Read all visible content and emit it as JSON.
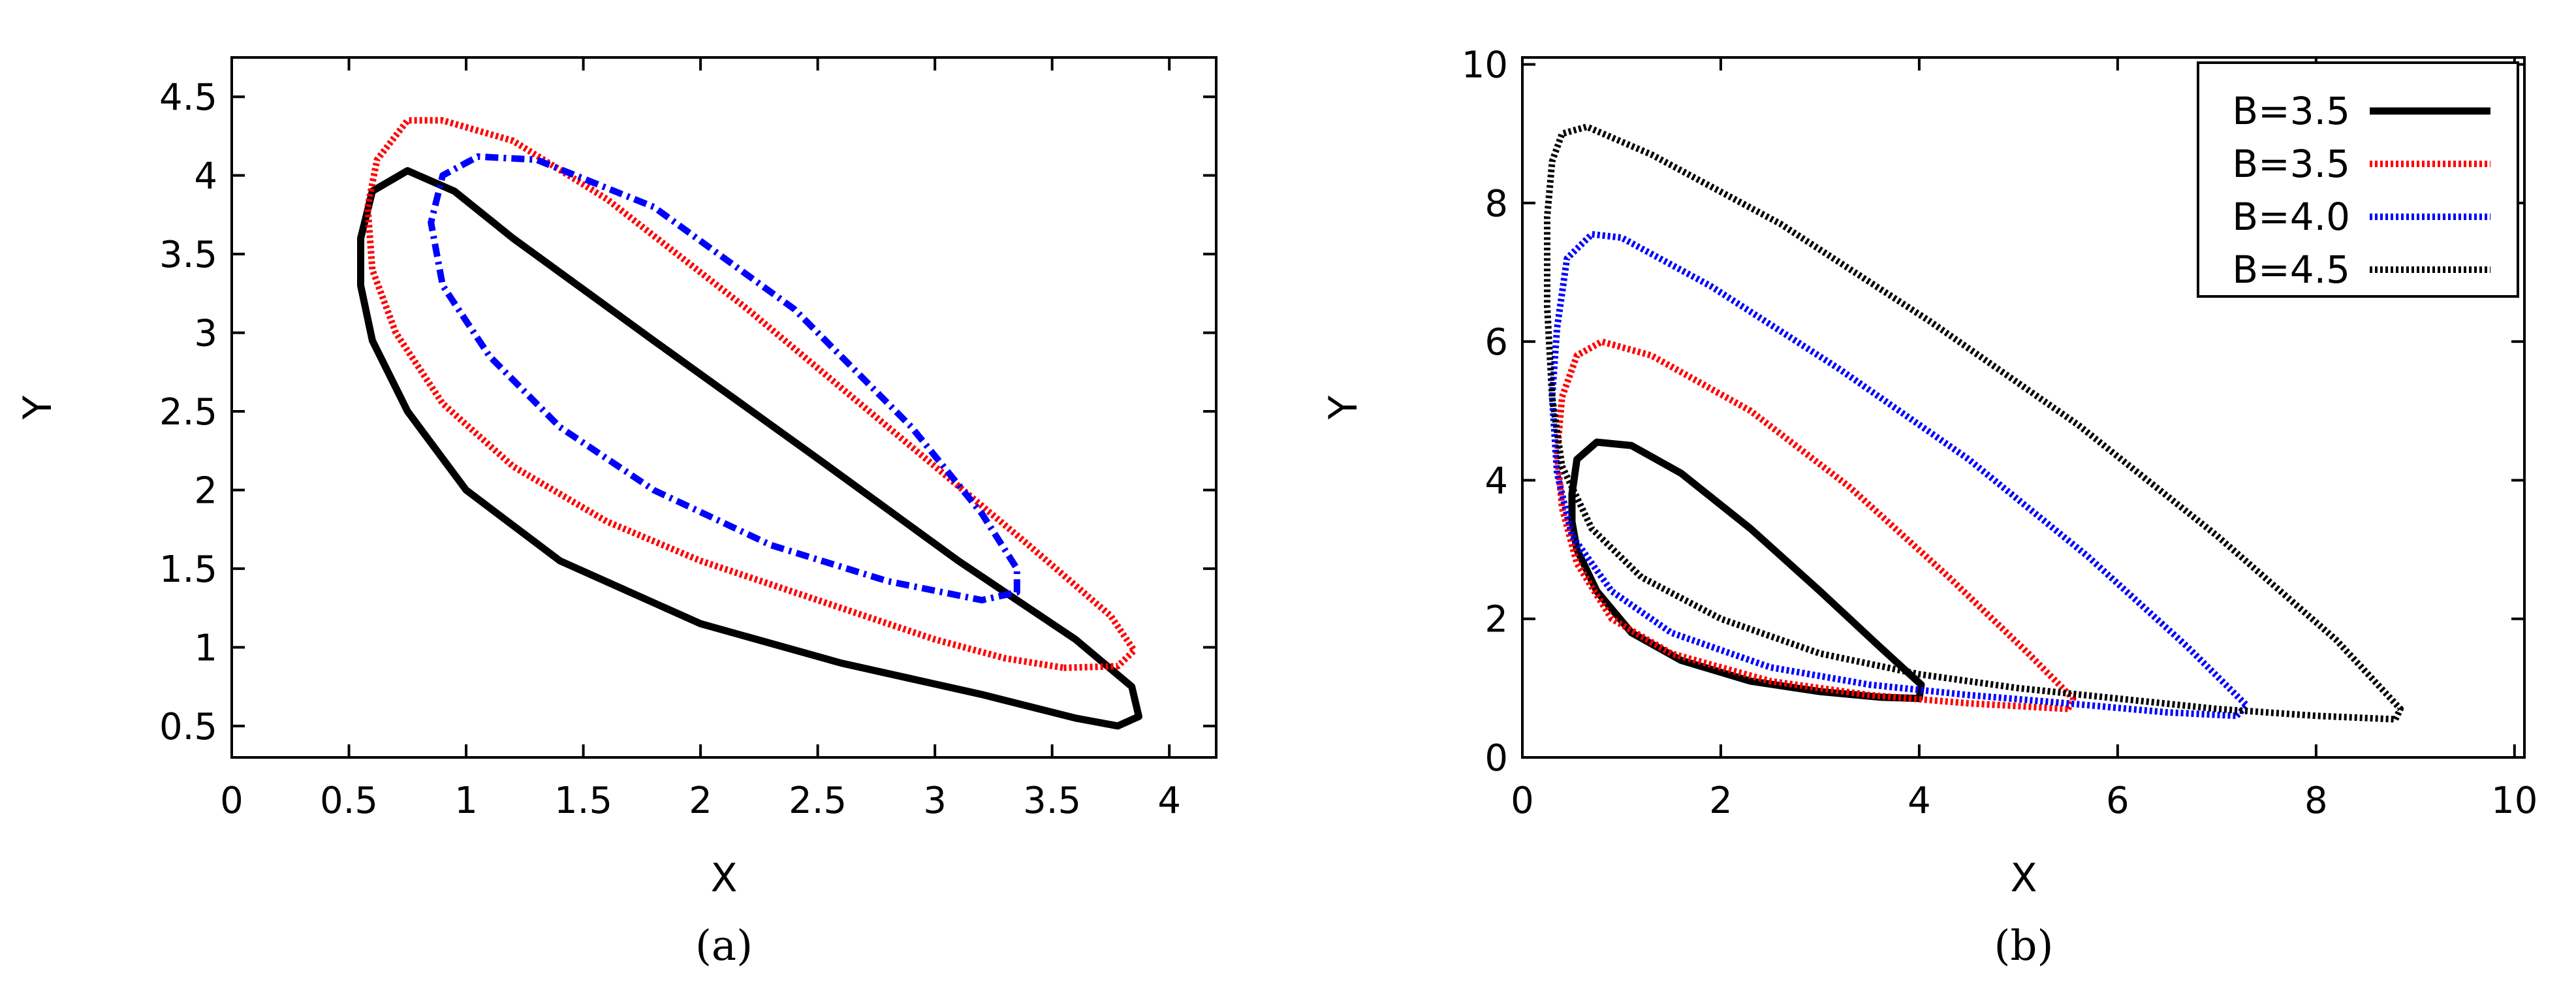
{
  "figure": {
    "captions": [
      "(a)",
      "(b)"
    ]
  },
  "chart_data": [
    {
      "type": "line",
      "caption": "(a)",
      "xlabel": "X",
      "ylabel": "Y",
      "xlim": [
        0,
        4.2
      ],
      "ylim": [
        0.3,
        4.75
      ],
      "xticks": [
        0,
        0.5,
        1,
        1.5,
        2,
        2.5,
        3,
        3.5,
        4
      ],
      "xtick_labels": [
        "0",
        "0.5",
        "1",
        "1.5",
        "2",
        "2.5",
        "3",
        "3.5",
        "4"
      ],
      "yticks": [
        0.5,
        1,
        1.5,
        2,
        2.5,
        3,
        3.5,
        4,
        4.5
      ],
      "ytick_labels": [
        "0.5",
        "1",
        "1.5",
        "2",
        "2.5",
        "3",
        "3.5",
        "4",
        "4.5"
      ],
      "grid": false,
      "legend": "none",
      "series": [
        {
          "color": "#000000",
          "style": "solid",
          "points": [
            [
              3.78,
              0.5
            ],
            [
              3.87,
              0.56
            ],
            [
              3.84,
              0.75
            ],
            [
              3.6,
              1.05
            ],
            [
              3.1,
              1.55
            ],
            [
              2.5,
              2.2
            ],
            [
              1.8,
              2.95
            ],
            [
              1.2,
              3.6
            ],
            [
              0.95,
              3.9
            ],
            [
              0.75,
              4.03
            ],
            [
              0.6,
              3.9
            ],
            [
              0.55,
              3.6
            ],
            [
              0.55,
              3.3
            ],
            [
              0.6,
              2.95
            ],
            [
              0.75,
              2.5
            ],
            [
              1.0,
              2.0
            ],
            [
              1.4,
              1.55
            ],
            [
              2.0,
              1.15
            ],
            [
              2.6,
              0.9
            ],
            [
              3.2,
              0.7
            ],
            [
              3.6,
              0.55
            ],
            [
              3.78,
              0.5
            ]
          ]
        },
        {
          "color": "#ff0000",
          "style": "dotted",
          "points": [
            [
              3.55,
              0.87
            ],
            [
              3.78,
              0.88
            ],
            [
              3.85,
              0.98
            ],
            [
              3.75,
              1.2
            ],
            [
              3.4,
              1.65
            ],
            [
              2.8,
              2.4
            ],
            [
              2.2,
              3.15
            ],
            [
              1.6,
              3.85
            ],
            [
              1.2,
              4.22
            ],
            [
              0.9,
              4.35
            ],
            [
              0.75,
              4.35
            ],
            [
              0.62,
              4.1
            ],
            [
              0.58,
              3.8
            ],
            [
              0.6,
              3.4
            ],
            [
              0.7,
              3.0
            ],
            [
              0.9,
              2.55
            ],
            [
              1.2,
              2.15
            ],
            [
              1.6,
              1.8
            ],
            [
              2.0,
              1.55
            ],
            [
              2.5,
              1.3
            ],
            [
              3.0,
              1.05
            ],
            [
              3.3,
              0.93
            ],
            [
              3.55,
              0.87
            ]
          ]
        },
        {
          "color": "#0000ff",
          "style": "dashdot",
          "points": [
            [
              3.35,
              1.35
            ],
            [
              3.35,
              1.5
            ],
            [
              3.2,
              1.85
            ],
            [
              2.9,
              2.4
            ],
            [
              2.4,
              3.15
            ],
            [
              1.8,
              3.8
            ],
            [
              1.3,
              4.1
            ],
            [
              1.05,
              4.12
            ],
            [
              0.9,
              4.0
            ],
            [
              0.85,
              3.7
            ],
            [
              0.9,
              3.3
            ],
            [
              1.1,
              2.85
            ],
            [
              1.4,
              2.4
            ],
            [
              1.8,
              2.0
            ],
            [
              2.3,
              1.65
            ],
            [
              2.8,
              1.42
            ],
            [
              3.2,
              1.3
            ],
            [
              3.35,
              1.35
            ]
          ]
        }
      ]
    },
    {
      "type": "line",
      "caption": "(b)",
      "xlabel": "X",
      "ylabel": "Y",
      "xlim": [
        0,
        10.1
      ],
      "ylim": [
        0,
        10.1
      ],
      "xticks": [
        0,
        2,
        4,
        6,
        8,
        10
      ],
      "xtick_labels": [
        "0",
        "2",
        "4",
        "6",
        "8",
        "10"
      ],
      "yticks": [
        0,
        2,
        4,
        6,
        8,
        10
      ],
      "ytick_labels": [
        "0",
        "2",
        "4",
        "6",
        "8",
        "10"
      ],
      "grid": false,
      "legend": "top-right",
      "series": [
        {
          "name": "B=3.5",
          "color": "#000000",
          "style": "solid",
          "points": [
            [
              4.0,
              0.85
            ],
            [
              4.02,
              1.05
            ],
            [
              3.6,
              1.6
            ],
            [
              3.0,
              2.4
            ],
            [
              2.3,
              3.3
            ],
            [
              1.6,
              4.1
            ],
            [
              1.1,
              4.5
            ],
            [
              0.75,
              4.55
            ],
            [
              0.55,
              4.3
            ],
            [
              0.5,
              3.8
            ],
            [
              0.5,
              3.4
            ],
            [
              0.55,
              3.0
            ],
            [
              0.75,
              2.4
            ],
            [
              1.1,
              1.8
            ],
            [
              1.6,
              1.4
            ],
            [
              2.3,
              1.1
            ],
            [
              3.0,
              0.95
            ],
            [
              3.6,
              0.87
            ],
            [
              4.0,
              0.85
            ]
          ]
        },
        {
          "name": "B=3.5",
          "color": "#ff0000",
          "style": "dotted",
          "points": [
            [
              5.5,
              0.7
            ],
            [
              5.55,
              0.85
            ],
            [
              5.1,
              1.5
            ],
            [
              4.3,
              2.6
            ],
            [
              3.3,
              3.9
            ],
            [
              2.3,
              5.0
            ],
            [
              1.3,
              5.8
            ],
            [
              0.8,
              6.0
            ],
            [
              0.55,
              5.8
            ],
            [
              0.4,
              5.2
            ],
            [
              0.35,
              4.4
            ],
            [
              0.4,
              3.6
            ],
            [
              0.55,
              2.8
            ],
            [
              0.9,
              2.0
            ],
            [
              1.5,
              1.5
            ],
            [
              2.5,
              1.1
            ],
            [
              3.5,
              0.9
            ],
            [
              4.5,
              0.78
            ],
            [
              5.5,
              0.7
            ]
          ]
        },
        {
          "name": "B=4.0",
          "color": "#0000ff",
          "style": "dotted",
          "points": [
            [
              7.2,
              0.6
            ],
            [
              7.3,
              0.75
            ],
            [
              6.7,
              1.6
            ],
            [
              5.7,
              2.9
            ],
            [
              4.5,
              4.3
            ],
            [
              3.2,
              5.6
            ],
            [
              1.9,
              6.8
            ],
            [
              1.0,
              7.5
            ],
            [
              0.7,
              7.55
            ],
            [
              0.45,
              7.2
            ],
            [
              0.35,
              6.2
            ],
            [
              0.3,
              5.2
            ],
            [
              0.35,
              4.1
            ],
            [
              0.5,
              3.2
            ],
            [
              0.9,
              2.4
            ],
            [
              1.5,
              1.8
            ],
            [
              2.5,
              1.3
            ],
            [
              3.5,
              1.05
            ],
            [
              4.5,
              0.9
            ],
            [
              5.5,
              0.78
            ],
            [
              6.5,
              0.65
            ],
            [
              7.2,
              0.6
            ]
          ]
        },
        {
          "name": "B=4.5",
          "color": "#000000",
          "style": "dotted",
          "points": [
            [
              8.8,
              0.55
            ],
            [
              8.85,
              0.7
            ],
            [
              8.2,
              1.7
            ],
            [
              7.0,
              3.2
            ],
            [
              5.6,
              4.8
            ],
            [
              4.1,
              6.3
            ],
            [
              2.6,
              7.7
            ],
            [
              1.3,
              8.7
            ],
            [
              0.65,
              9.1
            ],
            [
              0.4,
              9.0
            ],
            [
              0.3,
              8.6
            ],
            [
              0.25,
              7.8
            ],
            [
              0.25,
              6.5
            ],
            [
              0.3,
              5.2
            ],
            [
              0.4,
              4.2
            ],
            [
              0.7,
              3.3
            ],
            [
              1.2,
              2.6
            ],
            [
              2.0,
              2.0
            ],
            [
              3.0,
              1.5
            ],
            [
              4.0,
              1.2
            ],
            [
              5.0,
              1.0
            ],
            [
              6.0,
              0.85
            ],
            [
              7.0,
              0.7
            ],
            [
              8.0,
              0.6
            ],
            [
              8.8,
              0.55
            ]
          ]
        }
      ]
    }
  ]
}
